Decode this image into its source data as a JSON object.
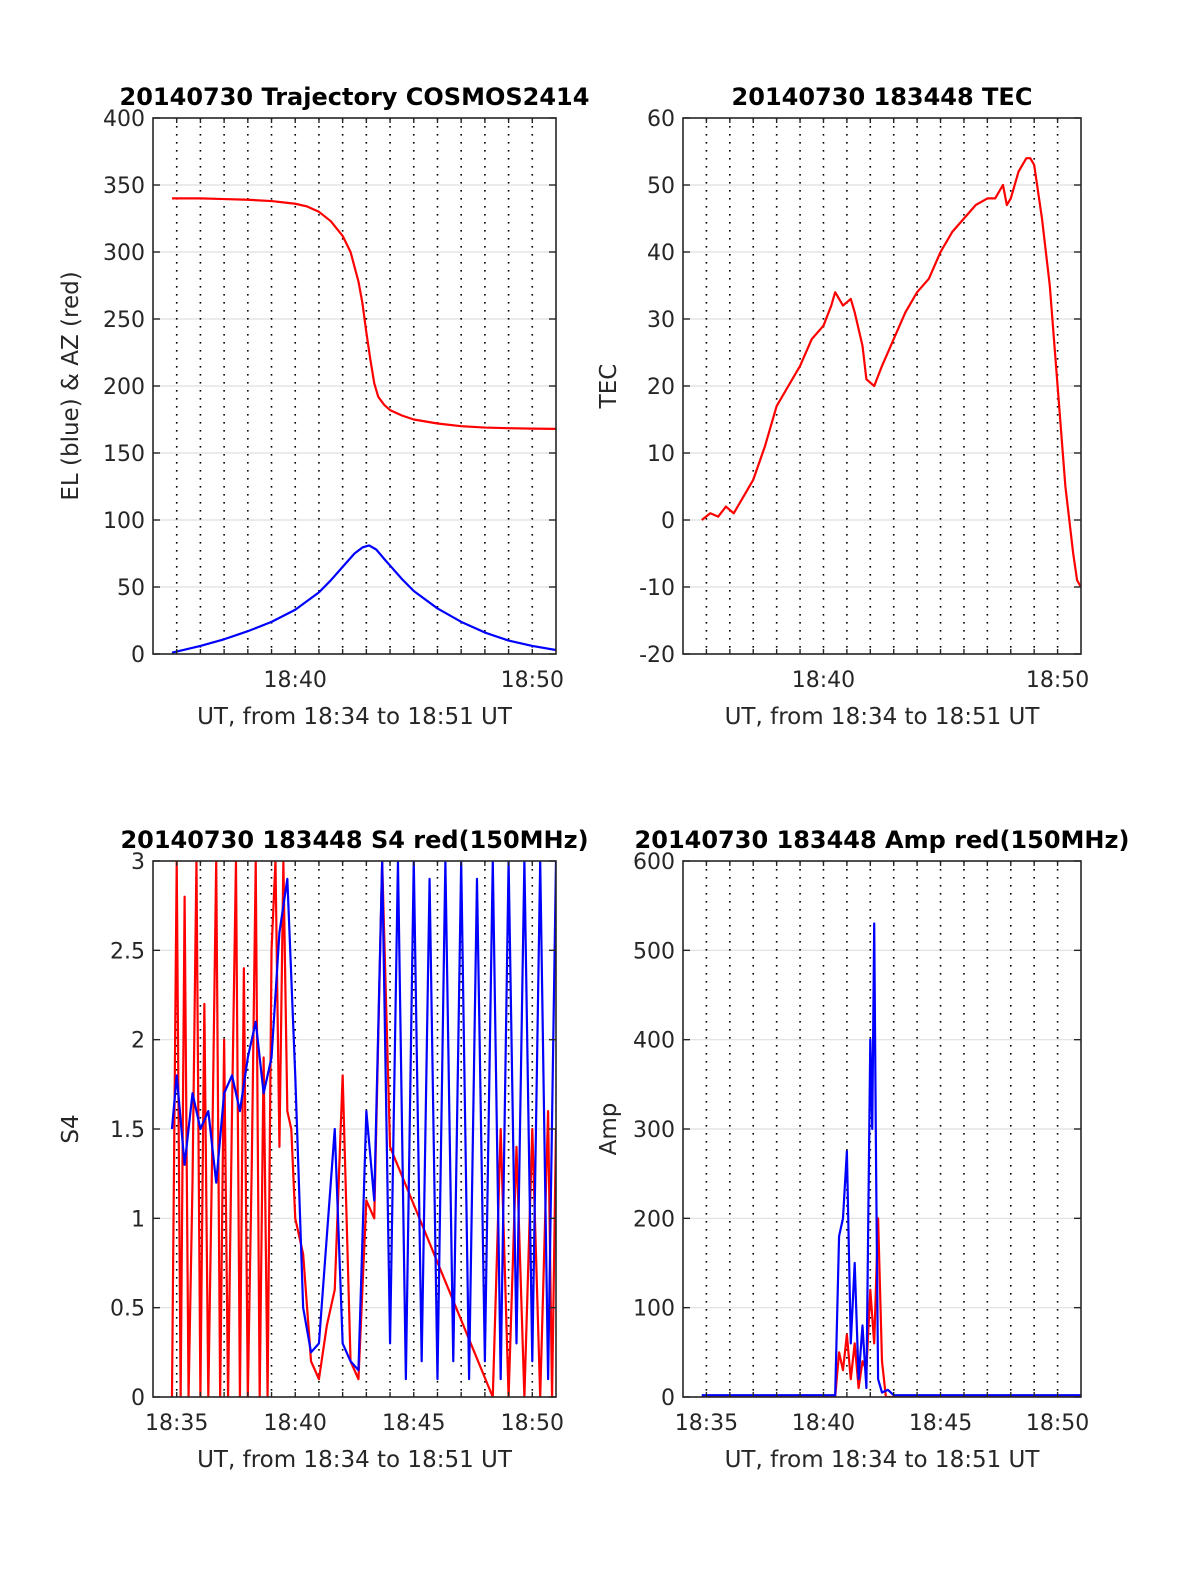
{
  "colors": {
    "el": "#0000ff",
    "az": "#ff0000",
    "tec": "#ff0000",
    "s4_red": "#ff0000",
    "s4_blue": "#0000ff",
    "amp_red": "#ff0000",
    "amp_blue": "#0000ff",
    "grid": "#000000",
    "axis": "#262626"
  },
  "chart_data": [
    {
      "type": "line",
      "title": "20140730 Trajectory COSMOS2414",
      "xlabel": "UT, from 18:34 to 18:51 UT",
      "ylabel": "EL (blue) & AZ (red)",
      "xlim": [
        "18:34:00",
        "18:51:00"
      ],
      "xticks": [
        "18:40",
        "18:50"
      ],
      "ylim": [
        0,
        400
      ],
      "yticks": [
        "0",
        "50",
        "100",
        "150",
        "200",
        "250",
        "300",
        "350",
        "400"
      ],
      "vertical_dotted_gridlines": [
        "18:35",
        "18:36",
        "18:37",
        "18:38",
        "18:39",
        "18:40",
        "18:41",
        "18:42",
        "18:43",
        "18:44",
        "18:45",
        "18:46",
        "18:47",
        "18:48",
        "18:49",
        "18:50"
      ],
      "grid": true,
      "series": [
        {
          "color": "red",
          "x": [
            "18:34:48",
            "18:36:00",
            "18:37:00",
            "18:38:00",
            "18:39:00",
            "18:40:00",
            "18:40:30",
            "18:41:00",
            "18:41:30",
            "18:42:00",
            "18:42:20",
            "18:42:40",
            "18:42:50",
            "18:43:00",
            "18:43:10",
            "18:43:20",
            "18:43:30",
            "18:43:45",
            "18:44:00",
            "18:44:30",
            "18:45:00",
            "18:46:00",
            "18:47:00",
            "18:48:00",
            "18:49:00",
            "18:50:00",
            "18:51:00"
          ],
          "y": [
            340,
            340,
            339.5,
            339,
            338,
            336,
            334,
            330,
            323,
            312,
            300,
            278,
            262,
            240,
            220,
            202,
            192,
            186,
            182,
            178,
            175,
            172,
            170,
            169,
            168.5,
            168.2,
            168
          ]
        },
        {
          "color": "blue",
          "x": [
            "18:34:48",
            "18:36:00",
            "18:37:00",
            "18:38:00",
            "18:39:00",
            "18:40:00",
            "18:41:00",
            "18:41:30",
            "18:42:00",
            "18:42:30",
            "18:42:50",
            "18:43:07",
            "18:43:25",
            "18:43:45",
            "18:44:00",
            "18:44:30",
            "18:45:00",
            "18:46:00",
            "18:47:00",
            "18:48:00",
            "18:49:00",
            "18:50:00",
            "18:51:00"
          ],
          "y": [
            1,
            6,
            11,
            17,
            24,
            33,
            46,
            55,
            65,
            75,
            79.5,
            81,
            78,
            71,
            66,
            56,
            47,
            34,
            24,
            16,
            10,
            6,
            3
          ]
        }
      ]
    },
    {
      "type": "line",
      "title": "20140730 183448 TEC",
      "xlabel": "UT, from 18:34 to 18:51 UT",
      "ylabel": "TEC",
      "xlim": [
        "18:34:00",
        "18:51:00"
      ],
      "xticks": [
        "18:40",
        "18:50"
      ],
      "ylim": [
        -20,
        60
      ],
      "yticks": [
        "-20",
        "-10",
        "0",
        "10",
        "20",
        "30",
        "40",
        "50",
        "60"
      ],
      "vertical_dotted_gridlines": [
        "18:35",
        "18:36",
        "18:37",
        "18:38",
        "18:39",
        "18:40",
        "18:41",
        "18:42",
        "18:43",
        "18:44",
        "18:45",
        "18:46",
        "18:47",
        "18:48",
        "18:49",
        "18:50"
      ],
      "grid": true,
      "series": [
        {
          "color": "red",
          "x": [
            "18:34:48",
            "18:35:10",
            "18:35:30",
            "18:35:50",
            "18:36:10",
            "18:36:30",
            "18:37:00",
            "18:37:30",
            "18:38:00",
            "18:38:30",
            "18:39:00",
            "18:39:30",
            "18:40:00",
            "18:40:20",
            "18:40:30",
            "18:40:50",
            "18:41:10",
            "18:41:20",
            "18:41:40",
            "18:41:50",
            "18:42:10",
            "18:42:30",
            "18:43:00",
            "18:43:30",
            "18:44:00",
            "18:44:30",
            "18:45:00",
            "18:45:30",
            "18:46:00",
            "18:46:30",
            "18:47:00",
            "18:47:20",
            "18:47:40",
            "18:47:50",
            "18:48:00",
            "18:48:20",
            "18:48:40",
            "18:48:50",
            "18:49:00",
            "18:49:20",
            "18:49:40",
            "18:50:00",
            "18:50:20",
            "18:50:40",
            "18:50:50",
            "18:51:00"
          ],
          "y": [
            0,
            1,
            0.5,
            2,
            1,
            3,
            6,
            11,
            17,
            20,
            23,
            27,
            29,
            32,
            34,
            32,
            33,
            31,
            26,
            21,
            20,
            23,
            27,
            31,
            34,
            36,
            40,
            43,
            45,
            47,
            48,
            48,
            50,
            47,
            48,
            52,
            54,
            54,
            53,
            45,
            35,
            20,
            5,
            -5,
            -9,
            -10
          ]
        }
      ]
    },
    {
      "type": "line",
      "title": "20140730 183448 S4 red(150MHz)",
      "xlabel": "UT, from 18:34 to 18:51 UT",
      "ylabel": "S4",
      "xlim": [
        "18:34:00",
        "18:51:00"
      ],
      "xticks": [
        "18:35",
        "18:40",
        "18:45",
        "18:50"
      ],
      "ylim": [
        0,
        3
      ],
      "yticks": [
        "0",
        "0.5",
        "1",
        "1.5",
        "2",
        "2.5",
        "3"
      ],
      "vertical_dotted_gridlines": [
        "18:35",
        "18:36",
        "18:37",
        "18:38",
        "18:39",
        "18:40",
        "18:41",
        "18:42",
        "18:43",
        "18:44",
        "18:45",
        "18:46",
        "18:47",
        "18:48",
        "18:49",
        "18:50"
      ],
      "grid": true,
      "series": [
        {
          "color": "red",
          "x": [
            "18:34:48",
            "18:35:00",
            "18:35:10",
            "18:35:20",
            "18:35:30",
            "18:35:40",
            "18:35:50",
            "18:36:00",
            "18:36:10",
            "18:36:20",
            "18:36:30",
            "18:36:40",
            "18:36:50",
            "18:37:00",
            "18:37:10",
            "18:37:20",
            "18:37:30",
            "18:37:40",
            "18:37:50",
            "18:38:00",
            "18:38:10",
            "18:38:20",
            "18:38:30",
            "18:38:40",
            "18:38:50",
            "18:39:00",
            "18:39:10",
            "18:39:20",
            "18:39:30",
            "18:39:40",
            "18:39:50",
            "18:40:00",
            "18:40:20",
            "18:40:40",
            "18:41:00",
            "18:41:20",
            "18:41:40",
            "18:42:00",
            "18:42:20",
            "18:42:40",
            "18:43:00",
            "18:43:20",
            "18:43:40",
            "18:44:00",
            "18:48:20",
            "18:48:40",
            "18:49:00",
            "18:49:20",
            "18:49:40",
            "18:50:00",
            "18:50:20",
            "18:50:40",
            "18:50:50",
            "18:51:00"
          ],
          "y": [
            0,
            3,
            0,
            2.8,
            0,
            1.2,
            3,
            0,
            2.2,
            0,
            1.4,
            3,
            0,
            2,
            0,
            1.6,
            3,
            0,
            2.4,
            0,
            1.3,
            3,
            0,
            1.9,
            0,
            2.5,
            3,
            1.4,
            3,
            1.6,
            1.5,
            1.0,
            0.8,
            0.2,
            0.1,
            0.4,
            0.6,
            1.8,
            0.2,
            0.1,
            1.1,
            1.0,
            3,
            1.4,
            0,
            1.5,
            0,
            1.4,
            0,
            1.5,
            0,
            1.6,
            0,
            1.5
          ]
        },
        {
          "color": "blue",
          "x": [
            "18:34:48",
            "18:35:00",
            "18:35:20",
            "18:35:40",
            "18:36:00",
            "18:36:20",
            "18:36:40",
            "18:37:00",
            "18:37:20",
            "18:37:40",
            "18:38:00",
            "18:38:20",
            "18:38:40",
            "18:39:00",
            "18:39:20",
            "18:39:40",
            "18:40:00",
            "18:40:20",
            "18:40:40",
            "18:41:00",
            "18:41:20",
            "18:41:40",
            "18:42:00",
            "18:42:20",
            "18:42:40",
            "18:43:00",
            "18:43:20",
            "18:43:40",
            "18:44:00",
            "18:44:20",
            "18:44:40",
            "18:45:00",
            "18:45:20",
            "18:45:40",
            "18:46:00",
            "18:46:20",
            "18:46:40",
            "18:47:00",
            "18:47:20",
            "18:47:40",
            "18:48:00",
            "18:48:20",
            "18:48:40",
            "18:49:00",
            "18:49:20",
            "18:49:40",
            "18:50:00",
            "18:50:20",
            "18:50:40",
            "18:51:00"
          ],
          "y": [
            1.5,
            1.8,
            1.3,
            1.7,
            1.5,
            1.6,
            1.2,
            1.7,
            1.8,
            1.6,
            1.9,
            2.1,
            1.7,
            1.9,
            2.6,
            2.9,
            1.8,
            0.5,
            0.25,
            0.3,
            0.9,
            1.5,
            0.3,
            0.2,
            0.15,
            1.6,
            1.1,
            3,
            0.3,
            3,
            0.1,
            3,
            0.2,
            2.9,
            0.1,
            3,
            0.2,
            3,
            0.1,
            2.9,
            0.2,
            3,
            0.1,
            3,
            0.3,
            3,
            0.2,
            3,
            0.1,
            3
          ]
        }
      ]
    },
    {
      "type": "line",
      "title": "20140730 183448 Amp red(150MHz)",
      "xlabel": "UT, from 18:34 to 18:51 UT",
      "ylabel": "Amp",
      "xlim": [
        "18:34:00",
        "18:51:00"
      ],
      "xticks": [
        "18:35",
        "18:40",
        "18:45",
        "18:50"
      ],
      "ylim": [
        0,
        600
      ],
      "yticks": [
        "0",
        "100",
        "200",
        "300",
        "400",
        "500",
        "600"
      ],
      "vertical_dotted_gridlines": [
        "18:35",
        "18:36",
        "18:37",
        "18:38",
        "18:39",
        "18:40",
        "18:41",
        "18:42",
        "18:43",
        "18:44",
        "18:45",
        "18:46",
        "18:47",
        "18:48",
        "18:49",
        "18:50"
      ],
      "grid": true,
      "series": [
        {
          "color": "red",
          "x": [
            "18:34:48",
            "18:40:30",
            "18:40:40",
            "18:40:50",
            "18:41:00",
            "18:41:10",
            "18:41:20",
            "18:41:30",
            "18:41:40",
            "18:41:50",
            "18:42:00",
            "18:42:10",
            "18:42:20",
            "18:42:30",
            "18:42:40",
            "18:51:00"
          ],
          "y": [
            0,
            0,
            50,
            30,
            70,
            20,
            60,
            10,
            40,
            30,
            120,
            60,
            200,
            40,
            0,
            0
          ]
        },
        {
          "color": "blue",
          "x": [
            "18:34:48",
            "18:40:30",
            "18:40:40",
            "18:40:50",
            "18:41:00",
            "18:41:10",
            "18:41:20",
            "18:41:30",
            "18:41:40",
            "18:41:50",
            "18:42:00",
            "18:42:05",
            "18:42:10",
            "18:42:15",
            "18:42:20",
            "18:42:30",
            "18:42:45",
            "18:43:00",
            "18:51:00"
          ],
          "y": [
            2,
            2,
            180,
            200,
            275,
            60,
            150,
            20,
            80,
            10,
            400,
            300,
            530,
            250,
            20,
            5,
            8,
            2,
            2
          ]
        }
      ]
    }
  ]
}
